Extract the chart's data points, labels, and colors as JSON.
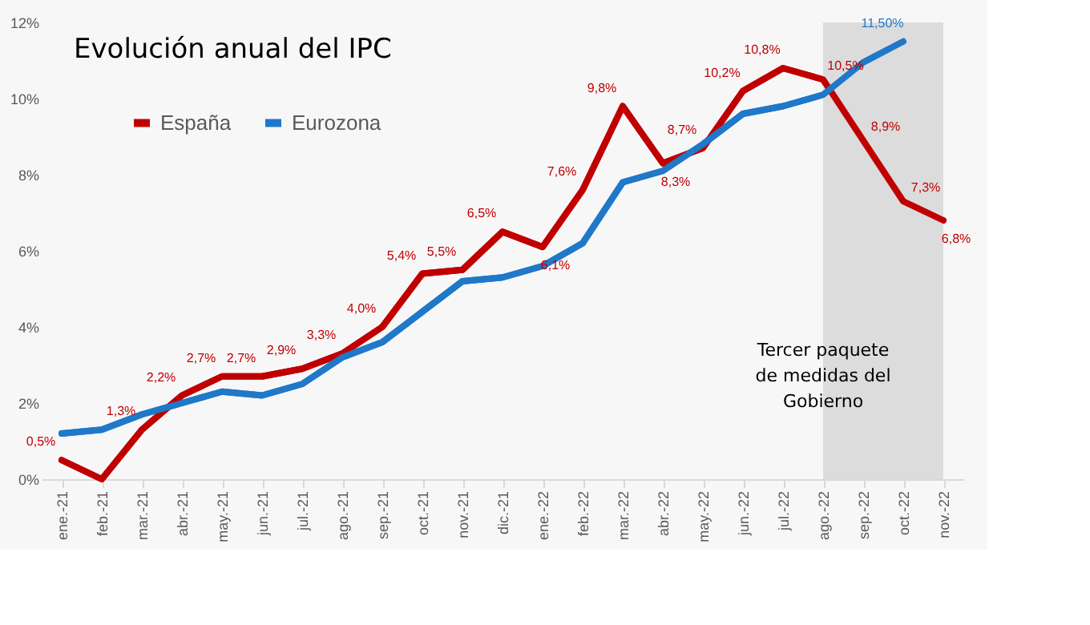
{
  "chart_data": {
    "type": "line",
    "title": "Evolución anual del IPC",
    "categories": [
      "ene.-21",
      "feb.-21",
      "mar.-21",
      "abr.-21",
      "may.-21",
      "jun.-21",
      "jul.-21",
      "ago.-21",
      "sep.-21",
      "oct.-21",
      "nov.-21",
      "dic.-21",
      "ene.-22",
      "feb.-22",
      "mar.-22",
      "abr.-22",
      "may.-22",
      "jun.-22",
      "jul.-22",
      "ago.-22",
      "sep.-22",
      "oct.-22",
      "nov.-22"
    ],
    "series": [
      {
        "name": "España",
        "color": "#c00000",
        "values": [
          0.5,
          0.0,
          1.3,
          2.2,
          2.7,
          2.7,
          2.9,
          3.3,
          4.0,
          5.4,
          5.5,
          6.5,
          6.1,
          7.6,
          9.8,
          8.3,
          8.7,
          10.2,
          10.8,
          10.5,
          8.9,
          7.3,
          6.8
        ],
        "value_labels": [
          "0,5%",
          null,
          "1,3%",
          "2,2%",
          "2,7%",
          "2,7%",
          "2,9%",
          "3,3%",
          "4,0%",
          "5,4%",
          "5,5%",
          "6,5%",
          "6,1%",
          "7,6%",
          "9,8%",
          "8,3%",
          "8,7%",
          "10,2%",
          "10,8%",
          "10,5%",
          "8,9%",
          "7,3%",
          "6,8%"
        ]
      },
      {
        "name": "Eurozona",
        "color": "#1f78c8",
        "values": [
          1.2,
          1.3,
          1.7,
          2.0,
          2.3,
          2.2,
          2.5,
          3.2,
          3.6,
          4.4,
          5.2,
          5.3,
          5.6,
          6.2,
          7.8,
          8.1,
          8.8,
          9.6,
          9.8,
          10.1,
          10.95,
          11.5,
          null
        ],
        "value_labels": [
          null,
          null,
          null,
          null,
          null,
          null,
          null,
          null,
          null,
          null,
          null,
          null,
          null,
          null,
          null,
          null,
          null,
          null,
          null,
          null,
          null,
          "11,50%",
          null
        ]
      }
    ],
    "ylim": [
      0,
      12
    ],
    "yticks": [
      {
        "value": 0,
        "label": "0%"
      },
      {
        "value": 2,
        "label": "2%"
      },
      {
        "value": 4,
        "label": "4%"
      },
      {
        "value": 6,
        "label": "6%"
      },
      {
        "value": 8,
        "label": "8%"
      },
      {
        "value": 10,
        "label": "10%"
      },
      {
        "value": 12,
        "label": "12%"
      }
    ],
    "bands": [
      {
        "axis": "x",
        "from": "ago.-22",
        "to": "nov.-22",
        "label": "Tercer paquete\nde medidas del\nGobierno",
        "color": "#dcdcdc"
      }
    ],
    "grid": false,
    "legend": "top left",
    "line_style": "solid",
    "marker": "none"
  }
}
